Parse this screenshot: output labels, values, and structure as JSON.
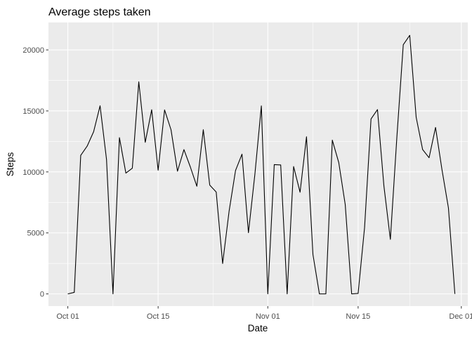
{
  "chart_data": {
    "type": "line",
    "title": "Average steps taken",
    "xlabel": "Date",
    "ylabel": "Steps",
    "xlim": [
      "2012-09-28",
      "2012-12-02"
    ],
    "ylim": [
      -1000,
      22250
    ],
    "x_ticks": [
      {
        "date": "2012-10-01",
        "label": "Oct 01"
      },
      {
        "date": "2012-10-15",
        "label": "Oct 15"
      },
      {
        "date": "2012-11-01",
        "label": "Nov 01"
      },
      {
        "date": "2012-11-15",
        "label": "Nov 15"
      },
      {
        "date": "2012-12-01",
        "label": "Dec 01"
      }
    ],
    "y_ticks": [
      0,
      5000,
      10000,
      15000,
      20000
    ],
    "grid": true,
    "background": "#ebebeb",
    "line_color": "#000000",
    "series": [
      {
        "x": [
          "2012-10-01",
          "2012-10-02",
          "2012-10-03",
          "2012-10-04",
          "2012-10-05",
          "2012-10-06",
          "2012-10-07",
          "2012-10-08",
          "2012-10-09",
          "2012-10-10",
          "2012-10-11",
          "2012-10-12",
          "2012-10-13",
          "2012-10-14",
          "2012-10-15",
          "2012-10-16",
          "2012-10-17",
          "2012-10-18",
          "2012-10-19",
          "2012-10-20",
          "2012-10-21",
          "2012-10-22",
          "2012-10-23",
          "2012-10-24",
          "2012-10-25",
          "2012-10-26",
          "2012-10-27",
          "2012-10-28",
          "2012-10-29",
          "2012-10-30",
          "2012-10-31",
          "2012-11-01",
          "2012-11-02",
          "2012-11-03",
          "2012-11-04",
          "2012-11-05",
          "2012-11-06",
          "2012-11-07",
          "2012-11-08",
          "2012-11-09",
          "2012-11-10",
          "2012-11-11",
          "2012-11-12",
          "2012-11-13",
          "2012-11-14",
          "2012-11-15",
          "2012-11-16",
          "2012-11-17",
          "2012-11-18",
          "2012-11-19",
          "2012-11-20",
          "2012-11-21",
          "2012-11-22",
          "2012-11-23",
          "2012-11-24",
          "2012-11-25",
          "2012-11-26",
          "2012-11-27",
          "2012-11-28",
          "2012-11-29",
          "2012-11-30"
        ],
        "y": [
          0,
          126,
          11352,
          12116,
          13294,
          15420,
          11015,
          0,
          12811,
          9900,
          10304,
          17382,
          12426,
          15098,
          10139,
          15084,
          13452,
          10056,
          11829,
          10395,
          8821,
          13460,
          8918,
          8355,
          2492,
          6778,
          10119,
          11458,
          5018,
          9819,
          15414,
          0,
          10600,
          10571,
          0,
          10439,
          8334,
          12883,
          3219,
          0,
          0,
          12608,
          10765,
          7336,
          0,
          41,
          5441,
          14339,
          15110,
          8841,
          4472,
          12787,
          20427,
          21194,
          14478,
          11834,
          11162,
          13646,
          10183,
          7047,
          0
        ]
      }
    ]
  }
}
